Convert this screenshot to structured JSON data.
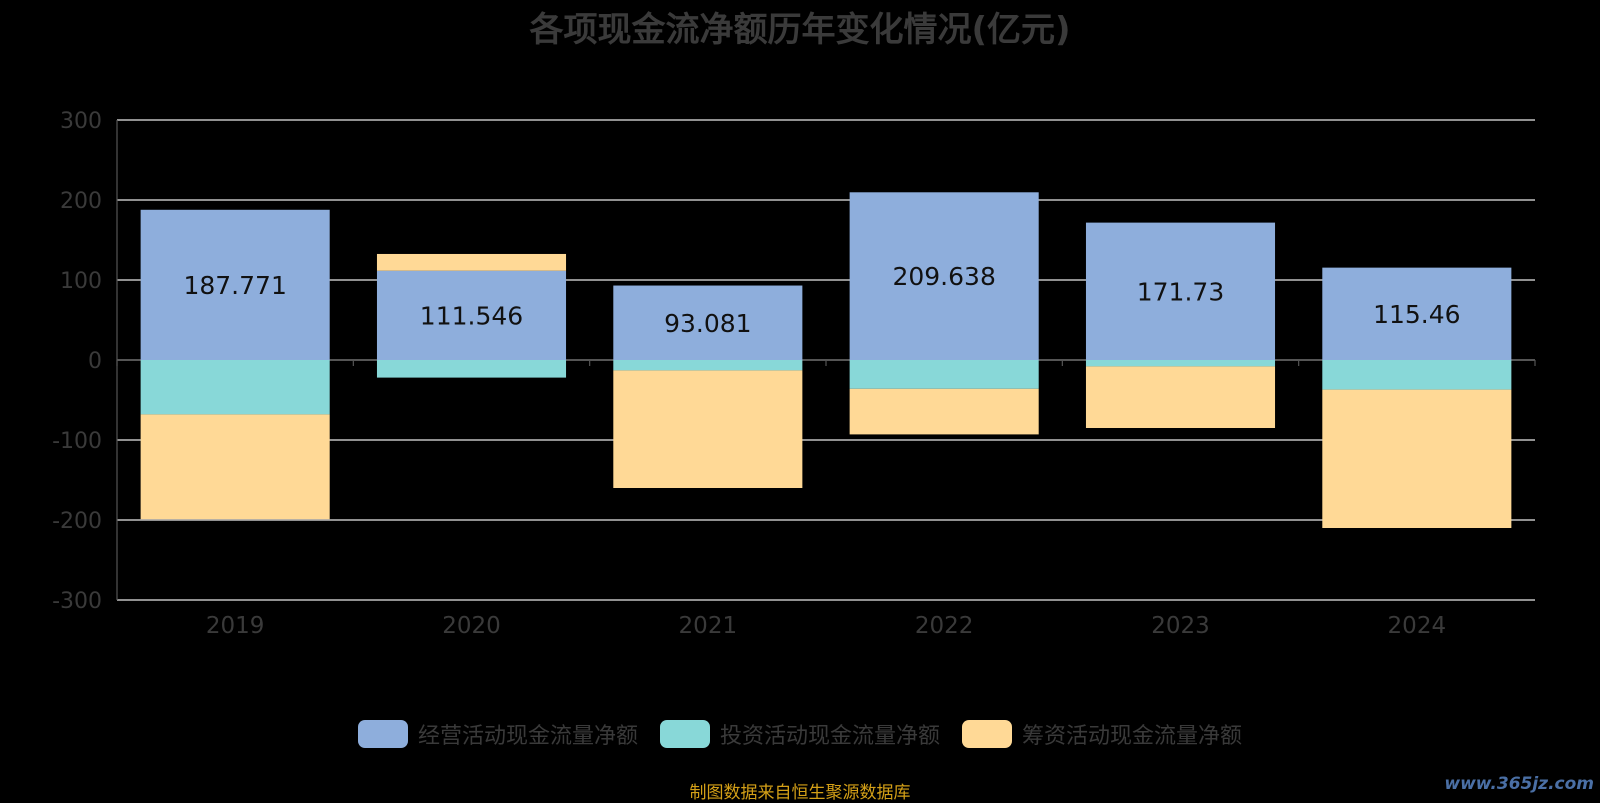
{
  "chart_data": {
    "type": "bar",
    "stacked": true,
    "title": "各项现金流净额历年变化情况(亿元)",
    "categories": [
      "2019",
      "2020",
      "2021",
      "2022",
      "2023",
      "2024"
    ],
    "ylim": [
      -300,
      300
    ],
    "yticks": [
      300,
      200,
      100,
      0,
      -100,
      -200,
      -300
    ],
    "grid": true,
    "legend_position": "bottom",
    "series": [
      {
        "name": "经营活动现金流量净额",
        "color": "#8eaedc",
        "values": [
          187.771,
          111.546,
          93.081,
          209.638,
          171.73,
          115.46
        ],
        "labels": [
          "187.771",
          "111.546",
          "93.081",
          "209.638",
          "171.73",
          "115.46"
        ]
      },
      {
        "name": "投资活动现金流量净额",
        "color": "#88d8d8",
        "values": [
          -68,
          -22,
          -13,
          -36,
          -8,
          -37
        ]
      },
      {
        "name": "筹资活动现金流量净额",
        "color": "#ffd996",
        "values": [
          -131,
          21,
          -147,
          -57,
          -77,
          -173
        ]
      }
    ]
  },
  "source_note": "制图数据来自恒生聚源数据库",
  "watermark": "www.365jz.com"
}
